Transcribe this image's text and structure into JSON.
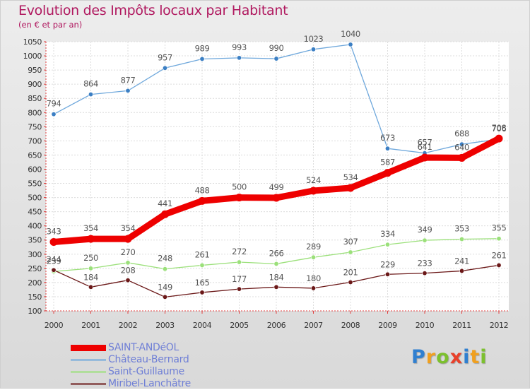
{
  "header": {
    "title": "Evolution des Impôts locaux par Habitant",
    "subtitle": "(en € et par an)"
  },
  "logo": {
    "letters": [
      "P",
      "r",
      "o",
      "x",
      "i",
      "t",
      "i"
    ]
  },
  "chart_data": {
    "type": "line",
    "title": "Evolution des Impôts locaux par Habitant",
    "subtitle": "(en € et par an)",
    "x": [
      2000,
      2001,
      2002,
      2003,
      2004,
      2005,
      2006,
      2007,
      2008,
      2009,
      2010,
      2011,
      2012
    ],
    "ylim": [
      100,
      1050
    ],
    "ytick_step": 50,
    "grid": true,
    "legend_position": "bottom-left",
    "series": [
      {
        "name": "SAINT-ANDéOL",
        "color": "#ee0000",
        "values": [
          343,
          354,
          354,
          441,
          488,
          500,
          499,
          524,
          534,
          587,
          641,
          640,
          708
        ]
      },
      {
        "name": "Château-Bernard",
        "color": "#6fa8dc",
        "values": [
          794,
          864,
          877,
          957,
          989,
          993,
          990,
          1023,
          1040,
          673,
          657,
          688,
          706
        ]
      },
      {
        "name": "Saint-Guillaume",
        "color": "#9be07a",
        "values": [
          239,
          250,
          270,
          248,
          261,
          272,
          266,
          289,
          307,
          334,
          349,
          353,
          355
        ]
      },
      {
        "name": "Miribel-Lanchâtre",
        "color": "#6b1818",
        "values": [
          244,
          184,
          208,
          149,
          165,
          177,
          184,
          180,
          201,
          229,
          233,
          241,
          261
        ]
      }
    ]
  }
}
